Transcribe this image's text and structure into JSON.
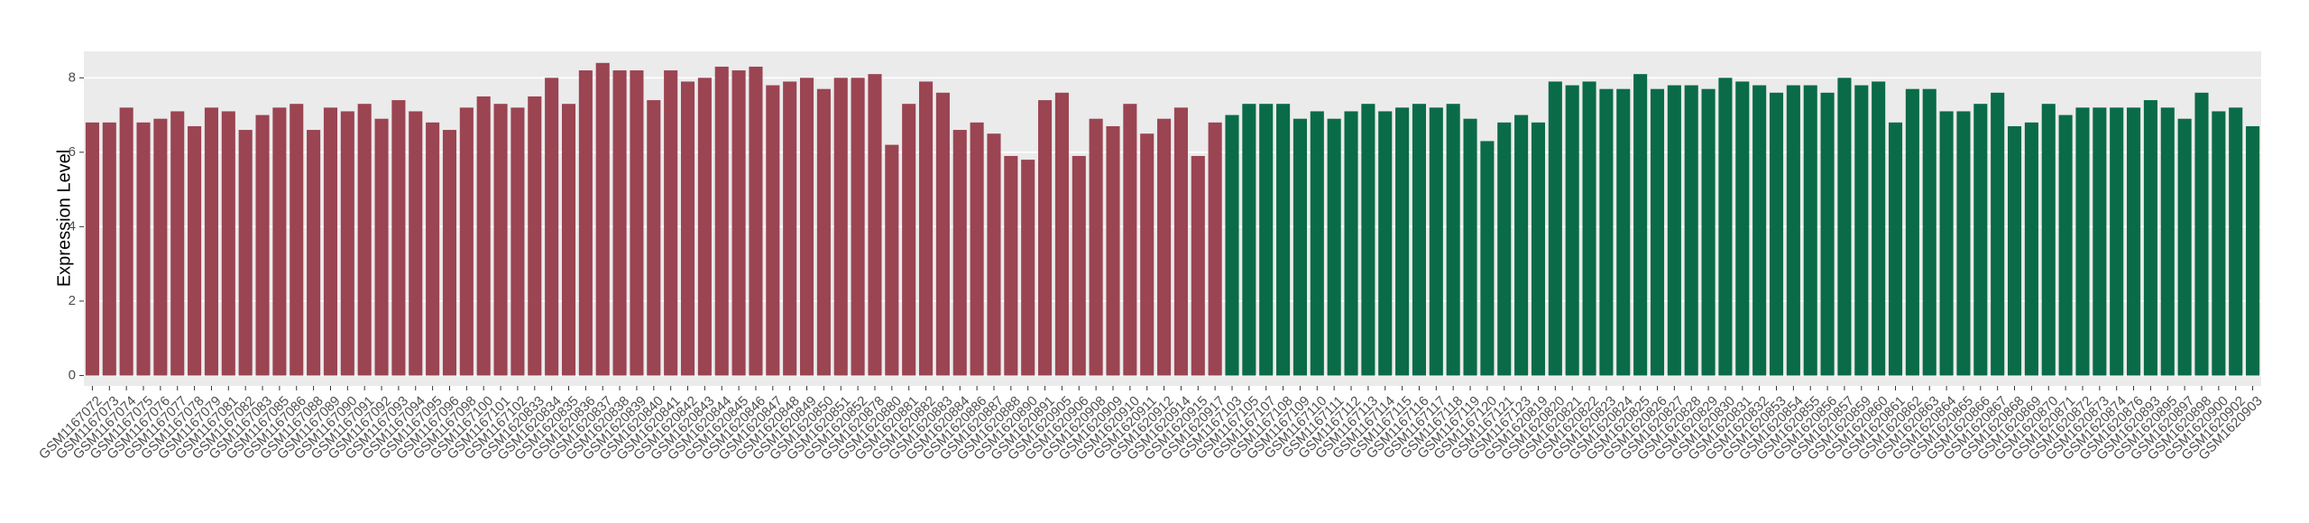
{
  "chart_data": {
    "type": "bar",
    "ylabel": "Expression Level",
    "ylim": [
      -0.28,
      8.71
    ],
    "yticks": [
      0,
      2,
      4,
      6,
      8
    ],
    "grid": true,
    "groups": [
      {
        "color": "#9b4452",
        "categories": [
          "GSM1167072",
          "GSM1167073",
          "GSM1167074",
          "GSM1167075",
          "GSM1167076",
          "GSM1167077",
          "GSM1167078",
          "GSM1167079",
          "GSM1167081",
          "GSM1167082",
          "GSM1167083",
          "GSM1167085",
          "GSM1167086",
          "GSM1167088",
          "GSM1167089",
          "GSM1167090",
          "GSM1167091",
          "GSM1167092",
          "GSM1167093",
          "GSM1167094",
          "GSM1167095",
          "GSM1167096",
          "GSM1167098",
          "GSM1167100",
          "GSM1167101",
          "GSM1167102",
          "GSM1620833",
          "GSM1620834",
          "GSM1620835",
          "GSM1620836",
          "GSM1620837",
          "GSM1620838",
          "GSM1620839",
          "GSM1620840",
          "GSM1620841",
          "GSM1620842",
          "GSM1620843",
          "GSM1620844",
          "GSM1620845",
          "GSM1620846",
          "GSM1620847",
          "GSM1620848",
          "GSM1620849",
          "GSM1620850",
          "GSM1620851",
          "GSM1620852",
          "GSM1620878",
          "GSM1620880",
          "GSM1620881",
          "GSM1620882",
          "GSM1620883",
          "GSM1620884",
          "GSM1620886",
          "GSM1620887",
          "GSM1620888",
          "GSM1620890",
          "GSM1620891",
          "GSM1620905",
          "GSM1620906",
          "GSM1620908",
          "GSM1620909",
          "GSM1620910",
          "GSM1620911",
          "GSM1620912",
          "GSM1620914",
          "GSM1620915",
          "GSM1620917"
        ],
        "values": [
          6.8,
          6.8,
          7.2,
          6.8,
          6.9,
          7.1,
          6.7,
          7.2,
          7.1,
          6.6,
          7.0,
          7.2,
          7.3,
          6.6,
          7.2,
          7.1,
          7.3,
          6.9,
          7.4,
          7.1,
          6.8,
          6.6,
          7.2,
          7.5,
          7.3,
          7.2,
          7.5,
          8.0,
          7.3,
          8.2,
          8.4,
          8.2,
          8.2,
          7.4,
          8.2,
          7.9,
          8.0,
          8.3,
          8.2,
          8.3,
          7.8,
          7.9,
          8.0,
          7.7,
          8.0,
          8.0,
          8.1,
          6.2,
          7.3,
          7.9,
          7.6,
          6.6,
          6.8,
          6.5,
          5.9,
          5.8,
          7.4,
          7.6,
          5.9,
          6.9,
          6.7,
          7.3,
          6.5,
          6.9,
          7.2,
          5.9,
          6.8
        ]
      },
      {
        "color": "#0a6b48",
        "categories": [
          "GSM1167103",
          "GSM1167105",
          "GSM1167107",
          "GSM1167108",
          "GSM1167109",
          "GSM1167110",
          "GSM1167111",
          "GSM1167112",
          "GSM1167113",
          "GSM1167114",
          "GSM1167115",
          "GSM1167116",
          "GSM1167117",
          "GSM1167118",
          "GSM1167119",
          "GSM1167120",
          "GSM1167121",
          "GSM1167123",
          "GSM1620819",
          "GSM1620820",
          "GSM1620821",
          "GSM1620822",
          "GSM1620823",
          "GSM1620824",
          "GSM1620825",
          "GSM1620826",
          "GSM1620827",
          "GSM1620828",
          "GSM1620829",
          "GSM1620830",
          "GSM1620831",
          "GSM1620832",
          "GSM1620853",
          "GSM1620854",
          "GSM1620855",
          "GSM1620856",
          "GSM1620857",
          "GSM1620859",
          "GSM1620860",
          "GSM1620861",
          "GSM1620862",
          "GSM1620863",
          "GSM1620864",
          "GSM1620865",
          "GSM1620866",
          "GSM1620867",
          "GSM1620868",
          "GSM1620869",
          "GSM1620870",
          "GSM1620871",
          "GSM1620872",
          "GSM1620873",
          "GSM1620874",
          "GSM1620876",
          "GSM1620893",
          "GSM1620895",
          "GSM1620897",
          "GSM1620898",
          "GSM1620900",
          "GSM1620902",
          "GSM1620903"
        ],
        "values": [
          7.0,
          7.3,
          7.3,
          7.3,
          6.9,
          7.1,
          6.9,
          7.1,
          7.3,
          7.1,
          7.2,
          7.3,
          7.2,
          7.3,
          6.9,
          6.3,
          6.8,
          7.0,
          6.8,
          7.9,
          7.8,
          7.9,
          7.7,
          7.7,
          8.1,
          7.7,
          7.8,
          7.8,
          7.7,
          8.0,
          7.9,
          7.8,
          7.6,
          7.8,
          7.8,
          7.6,
          8.0,
          7.8,
          7.9,
          6.8,
          7.7,
          7.7,
          7.1,
          7.1,
          7.3,
          7.6,
          6.7,
          6.8,
          7.3,
          7.0,
          7.2,
          7.2,
          7.2,
          7.2,
          7.4,
          7.2,
          6.9,
          7.6,
          7.1,
          7.2,
          6.7
        ]
      }
    ]
  }
}
